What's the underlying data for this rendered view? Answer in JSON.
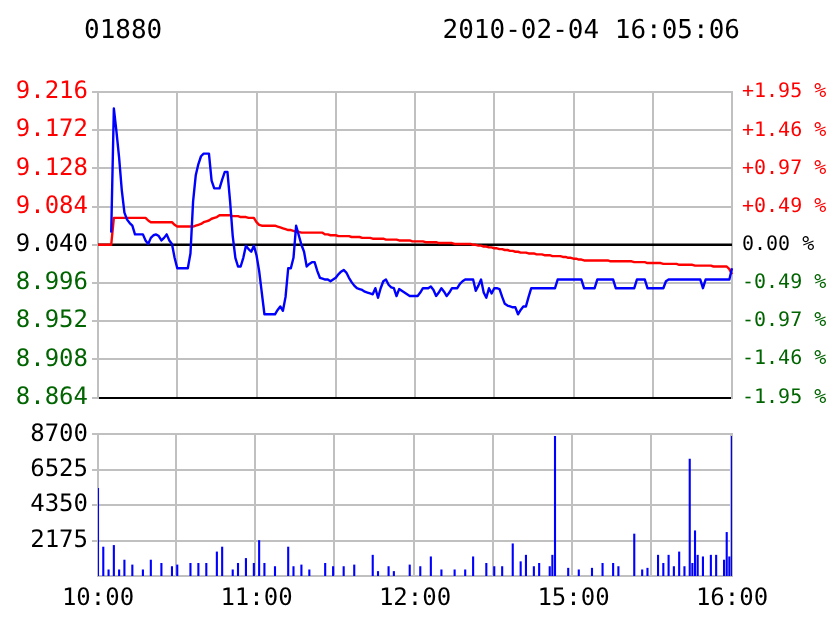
{
  "chart_data": [
    {
      "type": "line",
      "title": "01880",
      "annotations": [
        "2010-02-04 16:05:06"
      ],
      "categories": [
        null,
        null,
        null,
        null,
        null,
        null,
        null,
        null,
        null,
        null,
        null,
        null,
        null,
        null,
        null,
        null,
        null,
        null,
        null,
        null,
        null,
        null,
        null,
        null,
        null,
        null,
        null,
        null,
        null,
        null,
        null,
        null,
        null,
        null,
        null,
        null,
        null,
        null,
        null,
        null,
        null,
        null,
        null,
        null,
        null,
        null,
        null,
        null,
        null,
        null,
        null,
        null,
        null,
        null,
        null,
        null,
        null,
        null,
        null,
        null,
        null,
        null,
        null,
        null,
        null,
        null,
        null,
        null,
        null,
        null,
        null,
        null,
        null,
        null,
        null,
        null,
        null,
        null,
        null,
        null,
        null,
        null,
        null,
        null,
        null,
        null,
        null,
        null,
        null,
        null,
        null,
        null,
        null,
        null,
        null,
        null,
        null,
        null,
        null,
        null,
        null,
        null,
        null,
        null,
        null,
        null,
        null,
        null,
        null,
        null,
        null,
        null,
        null,
        null,
        null,
        null,
        null,
        null,
        null,
        null,
        null,
        null,
        null,
        null,
        null,
        null,
        null,
        null,
        null,
        null,
        null,
        null,
        null,
        null,
        null,
        null,
        null,
        null,
        null,
        null,
        null,
        null,
        null,
        null,
        null,
        null,
        null,
        null,
        null,
        null,
        null,
        null,
        null,
        null,
        null,
        null,
        null,
        null,
        null,
        null,
        null,
        null,
        null,
        null,
        null,
        null,
        null,
        null,
        null,
        null,
        null,
        null,
        null,
        null,
        null,
        null,
        null,
        null,
        null,
        null,
        null,
        null,
        null,
        null,
        null,
        null,
        null,
        null,
        null,
        null,
        null,
        null,
        null,
        null,
        null,
        null,
        null,
        null,
        null,
        null,
        null,
        null,
        null,
        null,
        null,
        null,
        null,
        null,
        null,
        null,
        null,
        null,
        null,
        null,
        null,
        null,
        null,
        null,
        null,
        null,
        null,
        null,
        null,
        null,
        null,
        null,
        null,
        null,
        null,
        null,
        null,
        null,
        null,
        null,
        null,
        null,
        null,
        null,
        null,
        null,
        null
      ],
      "ylim": [
        8.864,
        9.216
      ],
      "yticks": [
        {
          "value": 8.864,
          "label": "8.864"
        },
        {
          "value": 8.908,
          "label": "8.908"
        },
        {
          "value": 8.952,
          "label": "8.952"
        },
        {
          "value": 8.996,
          "label": "8.996"
        },
        {
          "value": 9.04,
          "label": "9.040"
        },
        {
          "value": 9.084,
          "label": "9.084"
        },
        {
          "value": 9.128,
          "label": "9.128"
        },
        {
          "value": 9.172,
          "label": "9.172"
        },
        {
          "value": 9.216,
          "label": "9.216"
        }
      ],
      "y2lim": [
        -1.95,
        1.95
      ],
      "y2ticks": [
        {
          "value": -1.95,
          "label": "-1.95 %"
        },
        {
          "value": -1.46,
          "label": "-1.46 %"
        },
        {
          "value": -0.97,
          "label": "-0.97 %"
        },
        {
          "value": -0.49,
          "label": "-0.49 %"
        },
        {
          "value": 0,
          "label": "0.00 %"
        },
        {
          "value": 0.49,
          "label": "+0.49 %"
        },
        {
          "value": 0.97,
          "label": "+0.97 %"
        },
        {
          "value": 1.46,
          "label": "+1.46 %"
        },
        {
          "value": 1.95,
          "label": "+1.95 %"
        }
      ],
      "tick_labels": "y",
      "grid": true,
      "legend": false,
      "marker": "none",
      "line_style": "solid",
      "ref_lines": [
        {
          "axis": "y",
          "value": 9.04,
          "color": "#000000"
        }
      ],
      "series": [
        {
          "color": "#0000ff",
          "values": [
            null,
            null,
            null,
            null,
            null,
            9.054,
            9.197,
            9.17,
            9.14,
            9.103,
            9.077,
            9.069,
            9.065,
            9.062,
            9.052,
            9.052,
            9.052,
            9.052,
            9.045,
            9.041,
            9.048,
            9.051,
            9.052,
            9.05,
            9.045,
            9.048,
            9.052,
            9.045,
            9.041,
            9.025,
            9.013,
            9.013,
            9.013,
            9.013,
            9.013,
            9.03,
            9.09,
            9.12,
            9.133,
            9.142,
            9.145,
            9.145,
            9.145,
            9.114,
            9.105,
            9.105,
            9.105,
            9.115,
            9.124,
            9.124,
            9.09,
            9.05,
            9.025,
            9.015,
            9.015,
            9.025,
            9.039,
            9.035,
            9.032,
            9.039,
            9.028,
            9.01,
            8.985,
            8.96,
            8.96,
            8.96,
            8.96,
            8.96,
            8.965,
            8.969,
            8.964,
            8.98,
            9.013,
            9.013,
            9.025,
            9.062,
            9.051,
            9.04,
            9.032,
            9.015,
            9.018,
            9.02,
            9.02,
            9.01,
            9.002,
            9.001,
            9.0,
            9.0,
            8.998,
            9.0,
            9.002,
            9.006,
            9.009,
            9.011,
            9.008,
            9.002,
            8.997,
            8.993,
            8.99,
            8.989,
            8.988,
            8.986,
            8.985,
            8.984,
            8.983,
            8.99,
            8.979,
            8.99,
            8.998,
            9.0,
            8.994,
            8.991,
            8.99,
            8.981,
            8.989,
            8.987,
            8.985,
            8.983,
            8.981,
            8.981,
            8.981,
            8.981,
            8.985,
            8.99,
            8.99,
            8.99,
            8.992,
            8.988,
            8.981,
            8.985,
            8.99,
            8.986,
            8.981,
            8.985,
            8.99,
            8.99,
            8.99,
            8.995,
            8.998,
            9.0,
            9.0,
            9.0,
            9.0,
            8.987,
            8.993,
            9.0,
            8.985,
            8.979,
            8.99,
            8.984,
            8.99,
            8.99,
            8.989,
            8.98,
            8.972,
            8.97,
            8.969,
            8.968,
            8.968,
            8.96,
            8.965,
            8.969,
            8.969,
            8.98,
            8.99,
            8.99,
            8.99,
            8.99,
            8.99,
            8.99,
            8.99,
            8.99,
            8.99,
            8.99,
            9.0,
            9.0,
            9.0,
            9.0,
            9.0,
            9.0,
            9.0,
            9.0,
            9.0,
            9.0,
            8.99,
            8.99,
            8.99,
            8.99,
            8.99,
            9.0,
            9.0,
            9.0,
            9.0,
            9.0,
            9.0,
            9.0,
            8.99,
            8.99,
            8.99,
            8.99,
            8.99,
            8.99,
            8.99,
            8.99,
            9.0,
            9.0,
            9.0,
            9.0,
            8.99,
            8.99,
            8.99,
            8.99,
            8.99,
            8.99,
            8.99,
            8.998,
            9.0,
            9.0,
            9.0,
            9.0,
            9.0,
            9.0,
            9.0,
            9.0,
            9.0,
            9.0,
            9.0,
            9.0,
            9.0,
            8.99,
            9.0,
            9.0,
            9.0,
            9.0,
            9.0,
            9.0,
            9.0,
            9.0,
            9.0,
            9.0,
            9.013
          ]
        },
        {
          "color": "#ff0000",
          "values": [
            9.04,
            9.04,
            9.04,
            9.04,
            9.04,
            9.04,
            9.071,
            9.071,
            9.071,
            9.071,
            9.071,
            9.071,
            9.071,
            9.071,
            9.071,
            9.071,
            9.071,
            9.071,
            9.071,
            9.068,
            9.066,
            9.066,
            9.066,
            9.066,
            9.066,
            9.066,
            9.066,
            9.066,
            9.066,
            9.063,
            9.061,
            9.061,
            9.061,
            9.061,
            9.061,
            9.061,
            9.061,
            9.062,
            9.063,
            9.064,
            9.066,
            9.067,
            9.068,
            9.07,
            9.071,
            9.072,
            9.074,
            9.074,
            9.074,
            9.074,
            9.074,
            9.073,
            9.073,
            9.073,
            9.072,
            9.072,
            9.072,
            9.071,
            9.071,
            9.071,
            9.066,
            9.063,
            9.062,
            9.062,
            9.062,
            9.062,
            9.062,
            9.062,
            9.061,
            9.06,
            9.059,
            9.058,
            9.057,
            9.057,
            9.056,
            9.055,
            9.055,
            9.054,
            9.054,
            9.054,
            9.054,
            9.054,
            9.054,
            9.054,
            9.054,
            9.054,
            9.052,
            9.052,
            9.051,
            9.051,
            9.051,
            9.05,
            9.05,
            9.05,
            9.05,
            9.05,
            9.049,
            9.049,
            9.049,
            9.049,
            9.048,
            9.048,
            9.048,
            9.048,
            9.047,
            9.047,
            9.047,
            9.047,
            9.047,
            9.046,
            9.046,
            9.046,
            9.046,
            9.046,
            9.045,
            9.045,
            9.045,
            9.045,
            9.045,
            9.044,
            9.044,
            9.044,
            9.044,
            9.044,
            9.043,
            9.043,
            9.043,
            9.043,
            9.043,
            9.042,
            9.042,
            9.042,
            9.042,
            9.042,
            9.042,
            9.041,
            9.041,
            9.041,
            9.041,
            9.041,
            9.041,
            9.041,
            9.04,
            9.04,
            9.039,
            9.039,
            9.038,
            9.038,
            9.037,
            9.037,
            9.036,
            9.036,
            9.035,
            9.035,
            9.034,
            9.034,
            9.033,
            9.033,
            9.032,
            9.032,
            9.031,
            9.031,
            9.031,
            9.03,
            9.03,
            9.03,
            9.029,
            9.029,
            9.029,
            9.028,
            9.028,
            9.028,
            9.027,
            9.027,
            9.027,
            9.027,
            9.026,
            9.026,
            9.025,
            9.025,
            9.024,
            9.024,
            9.023,
            9.023,
            9.022,
            9.022,
            9.022,
            9.022,
            9.022,
            9.022,
            9.022,
            9.022,
            9.022,
            9.022,
            9.021,
            9.021,
            9.021,
            9.021,
            9.021,
            9.021,
            9.021,
            9.021,
            9.021,
            9.02,
            9.02,
            9.02,
            9.02,
            9.02,
            9.019,
            9.019,
            9.019,
            9.019,
            9.019,
            9.019,
            9.018,
            9.018,
            9.018,
            9.018,
            9.018,
            9.018,
            9.017,
            9.017,
            9.017,
            9.017,
            9.017,
            9.017,
            9.016,
            9.016,
            9.016,
            9.016,
            9.016,
            9.016,
            9.016,
            9.015,
            9.015,
            9.015,
            9.015,
            9.015,
            9.015,
            9.012,
            9.006
          ]
        }
      ]
    },
    {
      "type": "bar",
      "categories": [
        "10:00",
        null,
        null,
        null,
        null,
        null,
        null,
        null,
        null,
        null,
        null,
        null,
        null,
        null,
        null,
        null,
        null,
        null,
        null,
        null,
        null,
        null,
        null,
        null,
        null,
        null,
        null,
        null,
        null,
        null,
        null,
        null,
        null,
        null,
        null,
        null,
        null,
        null,
        null,
        null,
        null,
        null,
        null,
        null,
        null,
        null,
        null,
        null,
        null,
        null,
        null,
        null,
        null,
        null,
        null,
        null,
        null,
        null,
        null,
        null,
        "11:00",
        null,
        null,
        null,
        null,
        null,
        null,
        null,
        null,
        null,
        null,
        null,
        null,
        null,
        null,
        null,
        null,
        null,
        null,
        null,
        null,
        null,
        null,
        null,
        null,
        null,
        null,
        null,
        null,
        null,
        null,
        null,
        null,
        null,
        null,
        null,
        null,
        null,
        null,
        null,
        null,
        null,
        null,
        null,
        null,
        null,
        null,
        null,
        null,
        null,
        null,
        null,
        null,
        null,
        null,
        null,
        null,
        null,
        null,
        null,
        "12:00",
        null,
        null,
        null,
        null,
        null,
        null,
        null,
        null,
        null,
        null,
        null,
        null,
        null,
        null,
        null,
        null,
        null,
        null,
        null,
        null,
        null,
        null,
        null,
        null,
        null,
        null,
        null,
        null,
        null,
        null,
        null,
        null,
        null,
        null,
        null,
        null,
        null,
        null,
        null,
        null,
        null,
        null,
        null,
        null,
        null,
        null,
        null,
        null,
        null,
        null,
        null,
        null,
        null,
        null,
        null,
        null,
        null,
        null,
        null,
        "15:00",
        null,
        null,
        null,
        null,
        null,
        null,
        null,
        null,
        null,
        null,
        null,
        null,
        null,
        null,
        null,
        null,
        null,
        null,
        null,
        null,
        null,
        null,
        null,
        null,
        null,
        null,
        null,
        null,
        null,
        null,
        null,
        null,
        null,
        null,
        null,
        null,
        null,
        null,
        null,
        null,
        null,
        null,
        null,
        null,
        null,
        null,
        null,
        null,
        null,
        null,
        null,
        null,
        null,
        null,
        null,
        null,
        null,
        null,
        null,
        "16:00"
      ],
      "ylim": [
        0,
        8700
      ],
      "yticks": [
        2175,
        4350,
        6525,
        8700
      ],
      "grid": true,
      "legend": false,
      "color": "#0000ff",
      "values": [
        5400,
        null,
        1800,
        null,
        400,
        null,
        1900,
        null,
        400,
        null,
        1000,
        null,
        null,
        700,
        null,
        null,
        null,
        400,
        null,
        null,
        1000,
        null,
        null,
        null,
        800,
        null,
        null,
        null,
        600,
        null,
        700,
        null,
        null,
        null,
        null,
        800,
        null,
        null,
        800,
        null,
        null,
        800,
        null,
        null,
        null,
        1500,
        null,
        1800,
        null,
        null,
        null,
        400,
        null,
        800,
        null,
        null,
        1100,
        null,
        null,
        800,
        null,
        2200,
        null,
        800,
        null,
        null,
        null,
        600,
        null,
        null,
        null,
        null,
        1800,
        null,
        600,
        null,
        null,
        700,
        null,
        null,
        400,
        null,
        null,
        null,
        null,
        null,
        800,
        null,
        null,
        600,
        null,
        null,
        null,
        600,
        null,
        null,
        null,
        700,
        null,
        null,
        null,
        null,
        null,
        null,
        1300,
        null,
        300,
        null,
        null,
        null,
        600,
        null,
        300,
        null,
        null,
        null,
        null,
        null,
        700,
        null,
        null,
        null,
        600,
        null,
        null,
        null,
        1200,
        null,
        null,
        null,
        400,
        null,
        null,
        null,
        null,
        400,
        null,
        null,
        null,
        400,
        null,
        null,
        1200,
        null,
        null,
        null,
        null,
        800,
        null,
        null,
        600,
        null,
        null,
        600,
        null,
        null,
        null,
        2000,
        null,
        null,
        900,
        null,
        1300,
        null,
        null,
        600,
        null,
        800,
        null,
        null,
        null,
        600,
        1300,
        8600,
        null,
        null,
        null,
        null,
        500,
        null,
        null,
        null,
        400,
        null,
        null,
        null,
        null,
        500,
        null,
        null,
        null,
        800,
        null,
        null,
        null,
        800,
        null,
        600,
        null,
        null,
        null,
        null,
        null,
        2600,
        null,
        null,
        400,
        null,
        500,
        null,
        null,
        null,
        1300,
        null,
        800,
        null,
        1300,
        null,
        600,
        null,
        1500,
        null,
        600,
        null,
        7200,
        800,
        2800,
        1300,
        null,
        1200,
        null,
        null,
        1300,
        null,
        1300,
        null,
        null,
        1000,
        2700,
        1200,
        8600
      ]
    }
  ]
}
